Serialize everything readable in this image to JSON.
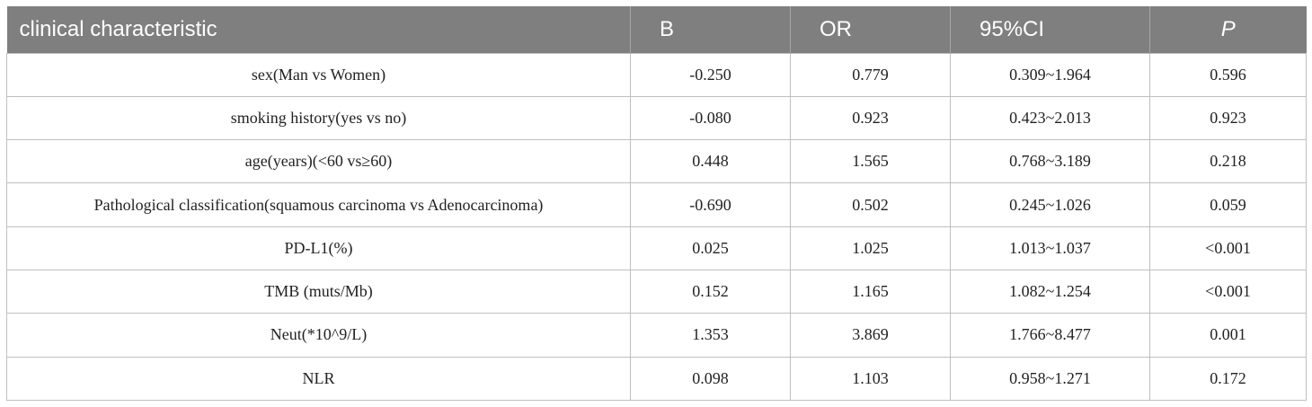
{
  "table": {
    "headers": [
      "clinical characteristic",
      "B",
      "OR",
      "95%CI",
      "P"
    ],
    "rows": [
      [
        "sex(Man vs Women)",
        "-0.250",
        "0.779",
        "0.309~1.964",
        "0.596"
      ],
      [
        "smoking history(yes vs no)",
        "-0.080",
        "0.923",
        "0.423~2.013",
        "0.923"
      ],
      [
        "age(years)(<60 vs≥60)",
        "0.448",
        "1.565",
        "0.768~3.189",
        "0.218"
      ],
      [
        "Pathological classification(squamous carcinoma vs Adenocarcinoma)",
        "-0.690",
        "0.502",
        "0.245~1.026",
        "0.059"
      ],
      [
        "PD-L1(%)",
        "0.025",
        "1.025",
        "1.013~1.037",
        "<0.001"
      ],
      [
        "TMB (muts/Mb)",
        "0.152",
        "1.165",
        "1.082~1.254",
        "<0.001"
      ],
      [
        "Neut(*10^9/L)",
        "1.353",
        "3.869",
        "1.766~8.477",
        "0.001"
      ],
      [
        "NLR",
        "0.098",
        "1.103",
        "0.958~1.271",
        "0.172"
      ]
    ]
  },
  "colors": {
    "header_bg": "#7f7f7f",
    "header_text": "#ffffff",
    "grid": "#bfbfbf"
  }
}
